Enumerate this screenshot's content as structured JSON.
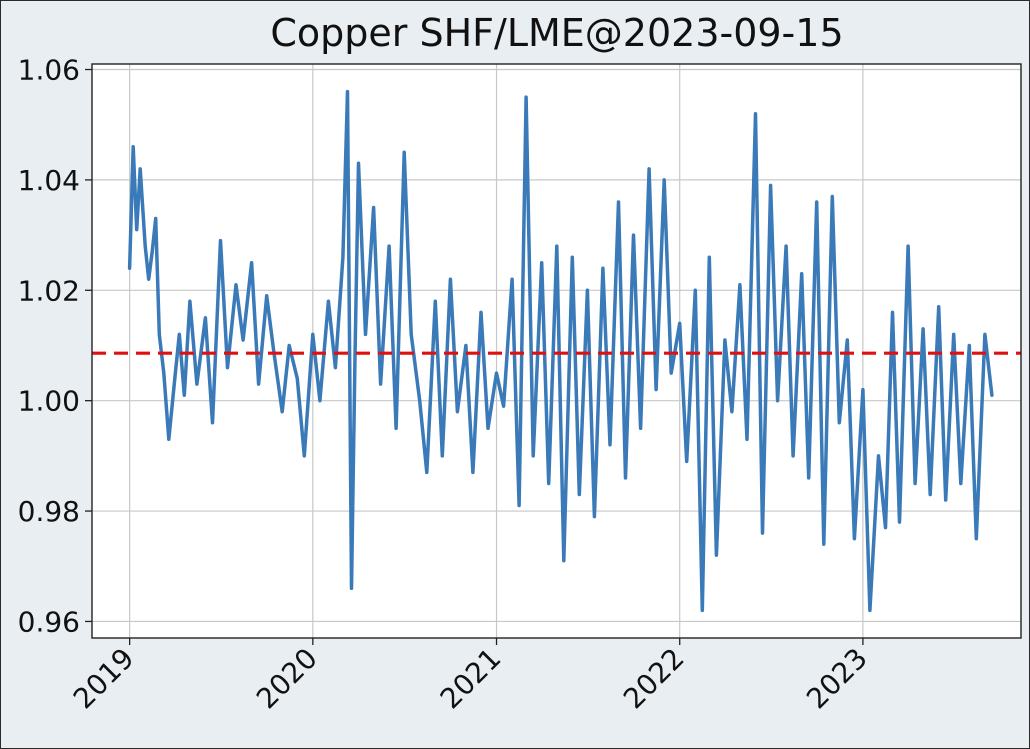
{
  "chart_data": {
    "type": "line",
    "title": "Copper SHF/LME@2023-09-15",
    "xlabel": "",
    "ylabel": "",
    "x_ticks": [
      "2019",
      "2020",
      "2021",
      "2022",
      "2023"
    ],
    "y_ticks": [
      "0.96",
      "0.98",
      "1.00",
      "1.02",
      "1.04",
      "1.06"
    ],
    "xlim": [
      "2018-10-18",
      "2023-11-12"
    ],
    "ylim": [
      0.957,
      1.061
    ],
    "grid": true,
    "reference_line": {
      "value": 1.0086,
      "style": "dashed",
      "color": "#e01010"
    },
    "colors": {
      "series": "#3a7ab8",
      "grid": "#c8c8c8",
      "axes": "#222222",
      "plot_bg": "#ffffff",
      "figure_bg": "#e9eef2"
    },
    "series": [
      {
        "x": [
          "2019-01-01",
          "2019-01-08",
          "2019-01-15",
          "2019-01-22",
          "2019-02-01",
          "2019-02-08",
          "2019-02-15",
          "2019-02-22",
          "2019-03-01",
          "2019-03-10",
          "2019-03-20",
          "2019-04-01",
          "2019-04-10",
          "2019-04-20",
          "2019-05-01",
          "2019-05-15",
          "2019-06-01",
          "2019-06-15",
          "2019-07-01",
          "2019-07-15",
          "2019-08-01",
          "2019-08-15",
          "2019-09-01",
          "2019-09-15",
          "2019-10-01",
          "2019-10-15",
          "2019-11-01",
          "2019-11-15",
          "2019-12-01",
          "2019-12-15",
          "2020-01-01",
          "2020-01-15",
          "2020-02-01",
          "2020-02-15",
          "2020-03-01",
          "2020-03-10",
          "2020-03-18",
          "2020-03-25",
          "2020-04-01",
          "2020-04-15",
          "2020-05-01",
          "2020-05-15",
          "2020-06-01",
          "2020-06-15",
          "2020-07-01",
          "2020-07-15",
          "2020-08-01",
          "2020-08-15",
          "2020-09-01",
          "2020-09-15",
          "2020-10-01",
          "2020-10-15",
          "2020-11-01",
          "2020-11-15",
          "2020-12-01",
          "2020-12-15",
          "2021-01-01",
          "2021-01-15",
          "2021-02-01",
          "2021-02-15",
          "2021-03-01",
          "2021-03-15",
          "2021-04-01",
          "2021-04-15",
          "2021-05-01",
          "2021-05-15",
          "2021-06-01",
          "2021-06-15",
          "2021-07-01",
          "2021-07-15",
          "2021-08-01",
          "2021-08-15",
          "2021-09-01",
          "2021-09-15",
          "2021-10-01",
          "2021-10-15",
          "2021-11-01",
          "2021-11-15",
          "2021-12-01",
          "2021-12-15",
          "2022-01-01",
          "2022-01-15",
          "2022-02-01",
          "2022-02-15",
          "2022-03-01",
          "2022-03-15",
          "2022-04-01",
          "2022-04-15",
          "2022-05-01",
          "2022-05-15",
          "2022-06-01",
          "2022-06-15",
          "2022-07-01",
          "2022-07-15",
          "2022-08-01",
          "2022-08-15",
          "2022-09-01",
          "2022-09-15",
          "2022-10-01",
          "2022-10-15",
          "2022-11-01",
          "2022-11-15",
          "2022-12-01",
          "2022-12-15",
          "2023-01-01",
          "2023-01-15",
          "2023-02-01",
          "2023-02-15",
          "2023-03-01",
          "2023-03-15",
          "2023-04-01",
          "2023-04-15",
          "2023-05-01",
          "2023-05-15",
          "2023-06-01",
          "2023-06-15",
          "2023-07-01",
          "2023-07-15",
          "2023-08-01",
          "2023-08-15",
          "2023-09-01",
          "2023-09-15"
        ],
        "values": [
          1.024,
          1.046,
          1.031,
          1.042,
          1.028,
          1.022,
          1.027,
          1.033,
          1.012,
          1.005,
          0.993,
          1.004,
          1.012,
          1.001,
          1.018,
          1.003,
          1.015,
          0.996,
          1.029,
          1.006,
          1.021,
          1.011,
          1.025,
          1.003,
          1.019,
          1.009,
          0.998,
          1.01,
          1.004,
          0.99,
          1.012,
          1.0,
          1.018,
          1.006,
          1.026,
          1.056,
          0.966,
          1.008,
          1.043,
          1.012,
          1.035,
          1.003,
          1.028,
          0.995,
          1.045,
          1.012,
          1.0,
          0.987,
          1.018,
          0.99,
          1.022,
          0.998,
          1.01,
          0.987,
          1.016,
          0.995,
          1.005,
          0.999,
          1.022,
          0.981,
          1.055,
          0.99,
          1.025,
          0.985,
          1.028,
          0.971,
          1.026,
          0.983,
          1.02,
          0.979,
          1.024,
          0.992,
          1.036,
          0.986,
          1.03,
          0.995,
          1.042,
          1.002,
          1.04,
          1.005,
          1.014,
          0.989,
          1.02,
          0.962,
          1.026,
          0.972,
          1.011,
          0.998,
          1.021,
          0.993,
          1.052,
          0.976,
          1.039,
          1.0,
          1.028,
          0.99,
          1.023,
          0.986,
          1.036,
          0.974,
          1.037,
          0.996,
          1.011,
          0.975,
          1.002,
          0.962,
          0.99,
          0.977,
          1.016,
          0.978,
          1.028,
          0.985,
          1.013,
          0.983,
          1.017,
          0.982,
          1.012,
          0.985,
          1.01,
          0.975,
          1.012,
          1.001
        ]
      }
    ]
  }
}
